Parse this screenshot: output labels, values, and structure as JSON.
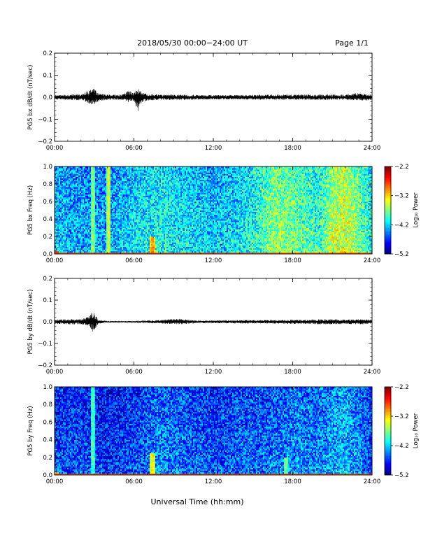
{
  "header": {
    "title": "2018/05/30  00:00−24:00 UT",
    "page": "Page 1/1"
  },
  "footer": {
    "xlabel": "Universal Time (hh:mm)"
  },
  "chart_data": [
    {
      "type": "line",
      "panel": "bx-dbdt",
      "ylabel": "PG5 bx dB/dt (nT/sec)",
      "xlim": [
        0,
        24
      ],
      "ylim": [
        -0.2,
        0.2
      ],
      "x_ticks": [
        "00:00",
        "06:00",
        "12:00",
        "18:00",
        "24:00"
      ],
      "y_ticks": [
        "0.2",
        "0.1",
        "0.0",
        "−0.1",
        "−0.2"
      ],
      "envelope": {
        "hours": [
          0,
          1,
          2,
          2.6,
          2.9,
          3.3,
          4,
          5,
          5.6,
          6,
          6.3,
          6.6,
          7,
          8,
          10,
          12,
          14,
          16,
          18,
          20,
          22,
          23,
          23.5,
          24
        ],
        "upper": [
          0.01,
          0.012,
          0.015,
          0.03,
          0.045,
          0.02,
          0.012,
          0.012,
          0.03,
          0.02,
          0.04,
          0.025,
          0.015,
          0.012,
          0.012,
          0.01,
          0.01,
          0.012,
          0.012,
          0.012,
          0.012,
          0.02,
          0.015,
          0.012
        ],
        "lower": [
          -0.01,
          -0.012,
          -0.015,
          -0.03,
          -0.035,
          -0.02,
          -0.012,
          -0.012,
          -0.025,
          -0.02,
          -0.07,
          -0.025,
          -0.015,
          -0.012,
          -0.012,
          -0.01,
          -0.01,
          -0.012,
          -0.012,
          -0.012,
          -0.012,
          -0.015,
          -0.015,
          -0.012
        ]
      }
    },
    {
      "type": "heatmap",
      "panel": "bx-spectrogram",
      "ylabel": "PG5 bx Freq (Hz)",
      "xlim": [
        0,
        24
      ],
      "ylim": [
        0,
        1.0
      ],
      "x_ticks": [
        "00:00",
        "06:00",
        "12:00",
        "18:00",
        "24:00"
      ],
      "y_ticks": [
        "1.0",
        "0.8",
        "0.6",
        "0.4",
        "0.2",
        "0.0"
      ],
      "colorbar": {
        "label": "Log₁₀ Power",
        "range": [
          -5.2,
          -2.2
        ],
        "ticks": [
          "−2.2",
          "−3.2",
          "−4.2",
          "−5.2"
        ]
      },
      "background_power": {
        "hours": [
          0,
          2,
          4,
          6,
          8,
          10,
          12,
          14,
          15.5,
          16.5,
          18,
          20,
          21,
          22,
          23,
          24
        ],
        "power": [
          -4.2,
          -4.3,
          -4.3,
          -4.1,
          -4.0,
          -4.1,
          -4.2,
          -4.1,
          -3.9,
          -3.6,
          -3.7,
          -3.9,
          -3.5,
          -3.4,
          -3.7,
          -4.0
        ]
      },
      "features": [
        {
          "hour": 2.9,
          "fmax": 1.0,
          "power": -3.6
        },
        {
          "hour": 4.1,
          "fmax": 1.0,
          "power": -3.4
        },
        {
          "hour": 7.4,
          "fmax": 0.2,
          "power": -2.9
        },
        {
          "hour": 0.15,
          "fmax": 0.03,
          "power": -2.6
        }
      ]
    },
    {
      "type": "line",
      "panel": "by-dbdt",
      "ylabel": "PG5 by dB/dt (nT/sec)",
      "xlim": [
        0,
        24
      ],
      "ylim": [
        -0.2,
        0.2
      ],
      "x_ticks": [
        "00:00",
        "06:00",
        "12:00",
        "18:00",
        "24:00"
      ],
      "y_ticks": [
        "0.2",
        "0.1",
        "0.0",
        "−0.1",
        "−0.2"
      ],
      "envelope": {
        "hours": [
          0,
          1,
          2,
          2.6,
          2.9,
          3.3,
          4,
          5,
          6,
          8,
          9.5,
          10,
          11,
          12,
          14,
          16,
          18,
          19,
          20,
          21,
          22,
          23,
          24
        ],
        "upper": [
          0.01,
          0.012,
          0.012,
          0.025,
          0.055,
          0.01,
          0.003,
          0.003,
          0.004,
          0.008,
          0.015,
          0.01,
          0.006,
          0.006,
          0.008,
          0.008,
          0.01,
          0.01,
          0.012,
          0.012,
          0.01,
          0.012,
          0.01
        ],
        "lower": [
          -0.01,
          -0.012,
          -0.012,
          -0.02,
          -0.05,
          -0.01,
          -0.003,
          -0.003,
          -0.004,
          -0.008,
          -0.012,
          -0.01,
          -0.006,
          -0.006,
          -0.008,
          -0.008,
          -0.01,
          -0.01,
          -0.012,
          -0.012,
          -0.01,
          -0.012,
          -0.01
        ]
      }
    },
    {
      "type": "heatmap",
      "panel": "by-spectrogram",
      "ylabel": "PG5 by Freq (Hz)",
      "xlim": [
        0,
        24
      ],
      "ylim": [
        0,
        1.0
      ],
      "x_ticks": [
        "00:00",
        "06:00",
        "12:00",
        "18:00",
        "24:00"
      ],
      "y_ticks": [
        "1.0",
        "0.8",
        "0.6",
        "0.4",
        "0.2",
        "0.0"
      ],
      "colorbar": {
        "label": "Log₁₀ Power",
        "range": [
          -5.2,
          -2.2
        ],
        "ticks": [
          "−2.2",
          "−3.2",
          "−4.2",
          "−5.2"
        ]
      },
      "background_power": {
        "hours": [
          0,
          2,
          4,
          6,
          8,
          10,
          12,
          14,
          16,
          18,
          20,
          21,
          22,
          23,
          24
        ],
        "power": [
          -4.6,
          -4.6,
          -4.7,
          -4.6,
          -4.4,
          -4.5,
          -4.6,
          -4.5,
          -4.5,
          -4.4,
          -4.4,
          -4.3,
          -4.2,
          -4.4,
          -4.6
        ]
      },
      "features": [
        {
          "hour": 2.9,
          "fmax": 1.0,
          "power": -3.8
        },
        {
          "hour": 7.4,
          "fmax": 0.25,
          "power": -3.2
        },
        {
          "hour": 17.5,
          "fmax": 0.2,
          "power": -3.7
        },
        {
          "hour": 0.15,
          "fmax": 0.03,
          "power": -2.8
        }
      ]
    }
  ]
}
